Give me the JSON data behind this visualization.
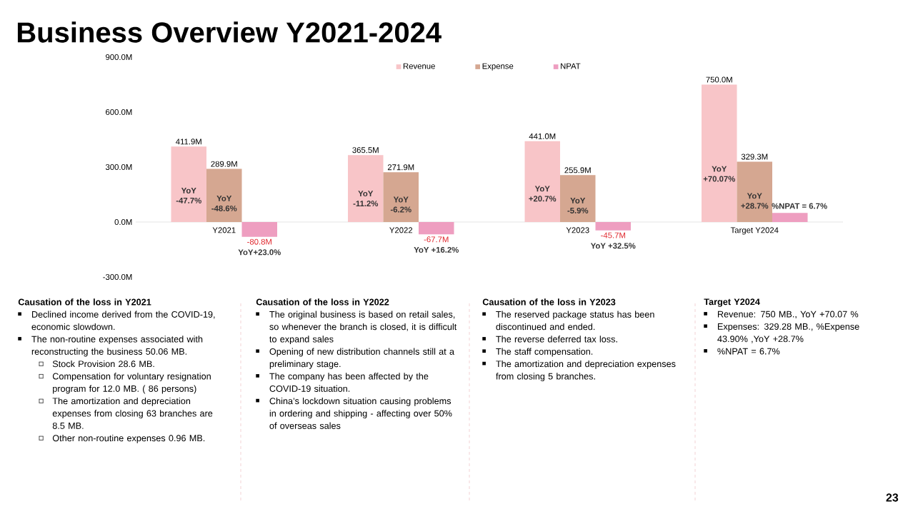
{
  "chart_data": {
    "type": "bar",
    "title": "Business Overview Y2021-2024",
    "categories": [
      "Y2021",
      "Y2022",
      "Y2023",
      "Target Y2024"
    ],
    "series": [
      {
        "name": "Revenue",
        "color": "#f8c5c8",
        "values": [
          411.9,
          365.5,
          441.0,
          750.0
        ],
        "value_labels": [
          "411.9M",
          "365.5M",
          "441.0M",
          "750.0M"
        ]
      },
      {
        "name": "Expense",
        "color": "#d5a791",
        "values": [
          289.9,
          271.9,
          255.9,
          329.3
        ],
        "value_labels": [
          "289.9M",
          "271.9M",
          "255.9M",
          "329.3M"
        ]
      },
      {
        "name": "NPAT",
        "color": "#ee9ec0",
        "values": [
          -80.8,
          -67.7,
          -45.7,
          50
        ],
        "value_labels": [
          "-80.8M",
          "-67.7M",
          "-45.7M",
          null
        ]
      }
    ],
    "ylim": [
      -300,
      900
    ],
    "yticks": [
      {
        "value": -300,
        "label": "-300.0M"
      },
      {
        "value": 0,
        "label": "0.0M"
      },
      {
        "value": 300,
        "label": "300.0M"
      },
      {
        "value": 600,
        "label": "600.0M"
      },
      {
        "value": 900,
        "label": "900.0M"
      }
    ],
    "legend": "top",
    "annotations": [
      "Causation of the loss in Y2021",
      "Declined income derived from the COVID-19, economic slowdown.",
      "The non-routine expenses associated with reconstructing the business 50.06 MB.",
      "Stock Provision  28.6 MB.",
      "Compensation for voluntary resignation program for 12.0 MB. ( 86 persons)",
      "The amortization and depreciation expenses from closing 63 branches are 8.5 MB.",
      "Other non-routine expenses 0.96 MB.",
      "Causation of the loss in Y2022",
      "The original business is based on retail sales, so whenever the branch is closed, it is difficult to expand sales",
      "Opening of new distribution channels still at a preliminary stage.",
      "The company has been affected by the COVID-19 situation.",
      "China’s lockdown situation causing problems in ordering and shipping - affecting over 50% of overseas sales",
      "Causation of the loss in Y2023",
      "The reserved package status has been discontinued and ended.",
      "The reverse deferred tax loss.",
      "The staff compensation.",
      "The amortization and depreciation expenses from closing 5 branches.",
      "Target Y2024",
      "Revenue: 750 MB., YoY +70.07 %",
      "Expenses: 329.28 MB., %Expense 43.90% ,YoY +28.7%",
      "%NPAT = 6.7%",
      "23",
      "YoY -47.7%",
      "YoY -48.6%",
      "YoY+23.0%",
      "YoY -11.2%",
      "YoY -6.2%",
      "YoY +16.2%",
      "YoY +20.7%",
      "YoY -5.9%",
      "YoY +32.5%",
      "YoY +70.07%",
      "YoY +28.7%",
      "%NPAT = 6.7%"
    ]
  }
}
